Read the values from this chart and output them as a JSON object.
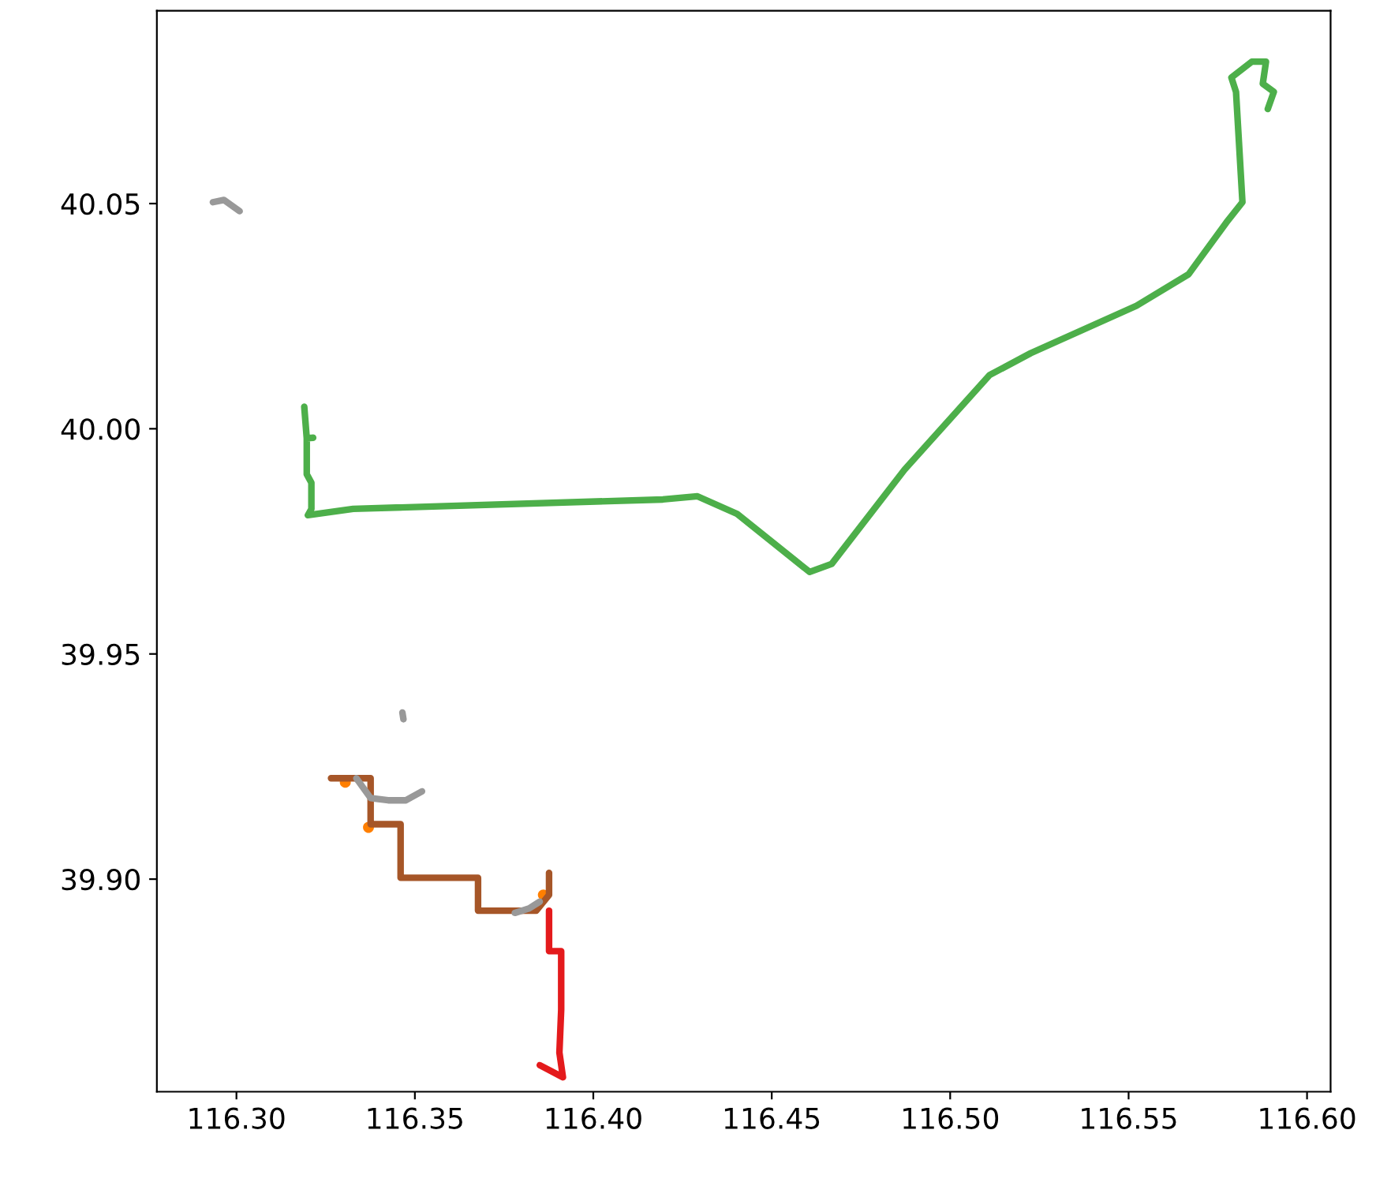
{
  "chart_data": {
    "type": "line",
    "xlim": [
      116.2777,
      116.6066
    ],
    "ylim": [
      39.8528,
      40.0928
    ],
    "xticks": [
      {
        "value": 116.3,
        "label": "116.30"
      },
      {
        "value": 116.35,
        "label": "116.35"
      },
      {
        "value": 116.4,
        "label": "116.40"
      },
      {
        "value": 116.45,
        "label": "116.45"
      },
      {
        "value": 116.5,
        "label": "116.50"
      },
      {
        "value": 116.55,
        "label": "116.55"
      },
      {
        "value": 116.6,
        "label": "116.60"
      }
    ],
    "yticks": [
      {
        "value": 39.9,
        "label": "39.90"
      },
      {
        "value": 39.95,
        "label": "39.95"
      },
      {
        "value": 40.0,
        "label": "40.00"
      },
      {
        "value": 40.05,
        "label": "40.05"
      }
    ],
    "grid": false,
    "line_style": "solid",
    "series": [
      {
        "color": "#4daf4a",
        "x": [
          116.319,
          116.3197,
          116.3215,
          116.3197,
          116.3197,
          116.321,
          116.321,
          116.32,
          116.3327,
          116.4195,
          116.4292,
          116.4403,
          116.4606,
          116.4668,
          116.4872,
          116.511,
          116.5226,
          116.5522,
          116.5668,
          116.5774,
          116.5819,
          116.5801,
          116.5788,
          116.5845,
          116.5885,
          116.5876,
          116.5907,
          116.589
        ],
        "values": [
          40.0049,
          39.9979,
          39.998,
          39.9979,
          39.9899,
          39.988,
          39.9822,
          39.9808,
          39.9822,
          39.9843,
          39.985,
          39.9811,
          39.9682,
          39.97,
          39.9909,
          40.0119,
          40.0168,
          40.0273,
          40.0343,
          40.0458,
          40.0503,
          40.0748,
          40.078,
          40.0815,
          40.0815,
          40.0766,
          40.0748,
          40.071
        ]
      },
      {
        "color": "#a65628",
        "x": [
          116.3265,
          116.3376,
          116.3376,
          116.346,
          116.346,
          116.3677,
          116.3677,
          116.384,
          116.3876,
          116.3876
        ],
        "values": [
          39.9224,
          39.9224,
          39.9122,
          39.9122,
          39.9003,
          39.9003,
          39.893,
          39.893,
          39.8965,
          39.9014
        ]
      },
      {
        "color": "#e41a1c",
        "x": [
          116.3876,
          116.3876,
          116.391,
          116.391,
          116.3905,
          116.3915,
          116.385
        ],
        "values": [
          39.893,
          39.884,
          39.884,
          39.871,
          39.8615,
          39.856,
          39.8587
        ]
      },
      {
        "color": "#999999",
        "x": [
          116.2934,
          116.2965,
          116.3009
        ],
        "values": [
          40.0503,
          40.0508,
          40.0483
        ]
      },
      {
        "color": "#999999",
        "x": [
          116.3336,
          116.3376,
          116.3425,
          116.3475,
          116.352
        ],
        "values": [
          39.9224,
          39.918,
          39.9175,
          39.9175,
          39.9195
        ]
      },
      {
        "color": "#999999",
        "x": [
          116.3465,
          116.3468
        ],
        "values": [
          39.937,
          39.9355
        ]
      },
      {
        "color": "#999999",
        "x": [
          116.378,
          116.382,
          116.385
        ],
        "values": [
          39.8925,
          39.8935,
          39.895
        ]
      },
      {
        "type": "scatter",
        "marker": "circle",
        "color": "#ff7f00",
        "x": [
          116.3305,
          116.337,
          116.386
        ],
        "values": [
          39.9215,
          39.9115,
          39.8965
        ]
      }
    ]
  }
}
